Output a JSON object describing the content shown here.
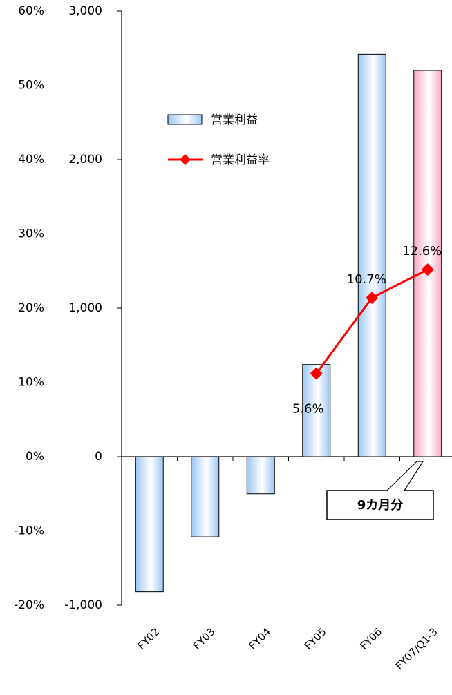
{
  "chart_data": {
    "type": "bar",
    "categories": [
      "FY02",
      "FY03",
      "FY04",
      "FY05",
      "FY06",
      "FY07/Q1-3"
    ],
    "series": [
      {
        "name": "営業利益",
        "type": "bar",
        "colors": [
          "#9cc6f2",
          "#9cc6f2",
          "#9cc6f2",
          "#9cc6f2",
          "#9cc6f2",
          "#f7a8c4"
        ],
        "values": [
          -910,
          -540,
          -250,
          620,
          2710,
          2600
        ]
      },
      {
        "name": "営業利益率",
        "type": "line",
        "color": "#ff0000",
        "axis": "y2",
        "values": [
          null,
          null,
          null,
          5.6,
          10.7,
          12.6
        ],
        "value_labels": [
          null,
          null,
          null,
          "5.6%",
          "10.7%",
          "12.6%"
        ]
      }
    ],
    "ylim": [
      -1000,
      3000
    ],
    "yticks": [
      {
        "value": -1000,
        "label": "-1,000"
      },
      0,
      {
        "value": 1000,
        "label": "1,000"
      },
      {
        "value": 2000,
        "label": "2,000"
      },
      {
        "value": 3000,
        "label": "3,000"
      }
    ],
    "y2lim": [
      -10,
      30
    ],
    "pct_axis": {
      "lim": [
        -20,
        60
      ],
      "ticks": [
        {
          "value": -20,
          "label": "-20%"
        },
        {
          "value": -10,
          "label": "-10%"
        },
        {
          "value": 0,
          "label": "0%"
        },
        {
          "value": 10,
          "label": "10%"
        },
        {
          "value": 20,
          "label": "20%"
        },
        {
          "value": 30,
          "label": "30%"
        },
        {
          "value": 40,
          "label": "40%"
        },
        {
          "value": 50,
          "label": "50%"
        },
        {
          "value": 60,
          "label": "60%"
        }
      ]
    },
    "annotation": "9カ月分"
  }
}
